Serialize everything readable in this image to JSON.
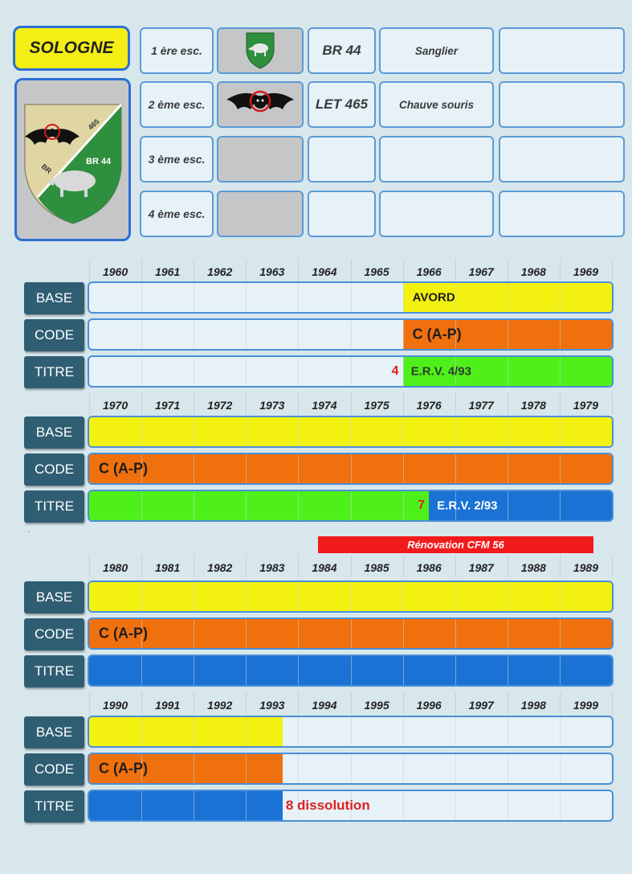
{
  "title": "SOLOGNE",
  "squadrons": [
    {
      "label": "1 ère esc.",
      "emblem": "boar-shield-icon",
      "code": "BR 44",
      "name": "Sanglier",
      "extra": ""
    },
    {
      "label": "2 ème esc.",
      "emblem": "bat-icon",
      "code": "LET 465",
      "name": "Chauve souris",
      "extra": ""
    },
    {
      "label": "3 ème esc.",
      "emblem": "",
      "code": "",
      "name": "",
      "extra": ""
    },
    {
      "label": "4 ème esc.",
      "emblem": "",
      "code": "",
      "name": "",
      "extra": ""
    }
  ],
  "main_emblem": {
    "icon": "squadron-crest-icon",
    "text_top": "465",
    "text_br_left": "BR",
    "text_br_right": "BR 44"
  },
  "row_labels": {
    "base": "BASE",
    "code": "CODE",
    "titre": "TITRE"
  },
  "colors": {
    "base": "#f3f110",
    "code": "#f0700e",
    "titre_erv4": "#4ff01a",
    "titre_erv2": "#1a72d4",
    "annotation": "#e02020",
    "renovation": "#f21b1b"
  },
  "renovation": {
    "label": "Rénovation CFM 56",
    "from": 1984.4,
    "to": 1989.6
  },
  "chart_data": {
    "type": "table",
    "decades": [
      {
        "years": [
          "1960",
          "1961",
          "1962",
          "1963",
          "1964",
          "1965",
          "1966",
          "1967",
          "1968",
          "1969"
        ],
        "base": [
          {
            "from": 1966,
            "to": 1970,
            "label": "AVORD",
            "color": "#f3f110"
          }
        ],
        "code": [
          {
            "from": 1966,
            "to": 1970,
            "label": "C (A-P)",
            "color": "#f0700e"
          }
        ],
        "titre": [
          {
            "from": 1966,
            "to": 1970,
            "label": "E.R.V. 4/93",
            "color": "#4ff01a"
          }
        ],
        "annotations": [
          {
            "row": "titre",
            "year": 1966,
            "text": "4"
          }
        ]
      },
      {
        "years": [
          "1970",
          "1971",
          "1972",
          "1973",
          "1974",
          "1975",
          "1976",
          "1977",
          "1978",
          "1979"
        ],
        "base": [
          {
            "from": 1970,
            "to": 1980,
            "label": "",
            "color": "#f3f110"
          }
        ],
        "code": [
          {
            "from": 1970,
            "to": 1980,
            "label": "C (A-P)",
            "color": "#f0700e"
          }
        ],
        "titre": [
          {
            "from": 1970,
            "to": 1976.5,
            "label": "",
            "color": "#4ff01a"
          },
          {
            "from": 1976.5,
            "to": 1980,
            "label": "E.R.V. 2/93",
            "color": "#1a72d4"
          }
        ],
        "annotations": [
          {
            "row": "titre",
            "year": 1976.5,
            "text": "7"
          }
        ]
      },
      {
        "years": [
          "1980",
          "1981",
          "1982",
          "1983",
          "1984",
          "1985",
          "1986",
          "1987",
          "1988",
          "1989"
        ],
        "base": [
          {
            "from": 1980,
            "to": 1990,
            "label": "",
            "color": "#f3f110"
          }
        ],
        "code": [
          {
            "from": 1980,
            "to": 1990,
            "label": "C (A-P)",
            "color": "#f0700e"
          }
        ],
        "titre": [
          {
            "from": 1980,
            "to": 1990,
            "label": "",
            "color": "#1a72d4"
          }
        ],
        "annotations": []
      },
      {
        "years": [
          "1990",
          "1991",
          "1992",
          "1993",
          "1994",
          "1995",
          "1996",
          "1997",
          "1998",
          "1999"
        ],
        "base": [
          {
            "from": 1990,
            "to": 1993.7,
            "label": "",
            "color": "#f3f110"
          }
        ],
        "code": [
          {
            "from": 1990,
            "to": 1993.7,
            "label": "C (A-P)",
            "color": "#f0700e"
          }
        ],
        "titre": [
          {
            "from": 1990,
            "to": 1993.7,
            "label": "",
            "color": "#1a72d4"
          }
        ],
        "annotations": [
          {
            "row": "titre",
            "year": 1993.7,
            "text": "8 dissolution"
          }
        ]
      }
    ]
  }
}
